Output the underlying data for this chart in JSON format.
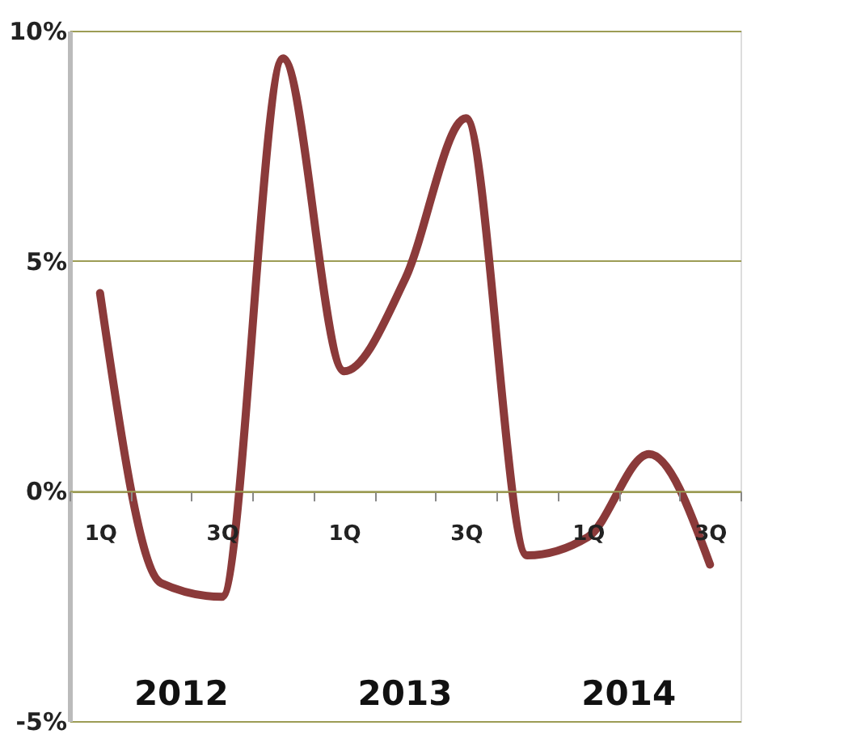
{
  "chart_data": {
    "type": "line",
    "categories": [
      "1Q",
      null,
      "3Q",
      null,
      "1Q",
      null,
      "3Q",
      null,
      "1Q",
      null,
      "3Q"
    ],
    "series": [
      {
        "color": "#8b3a3a",
        "values": [
          4.3,
          -2.0,
          -2.3,
          9.4,
          2.6,
          4.6,
          8.1,
          -1.4,
          -1.0,
          0.8,
          -1.6
        ]
      }
    ],
    "ylim": [
      -5,
      10
    ],
    "yticks": [
      {
        "value": -5,
        "label": "-5%"
      },
      {
        "value": 0,
        "label": "0%"
      },
      {
        "value": 5,
        "label": "5%"
      },
      {
        "value": 10,
        "label": "10%"
      }
    ],
    "grid": "y",
    "line_style": "solid",
    "annotations": [
      "2012",
      "2013",
      "2014"
    ]
  }
}
